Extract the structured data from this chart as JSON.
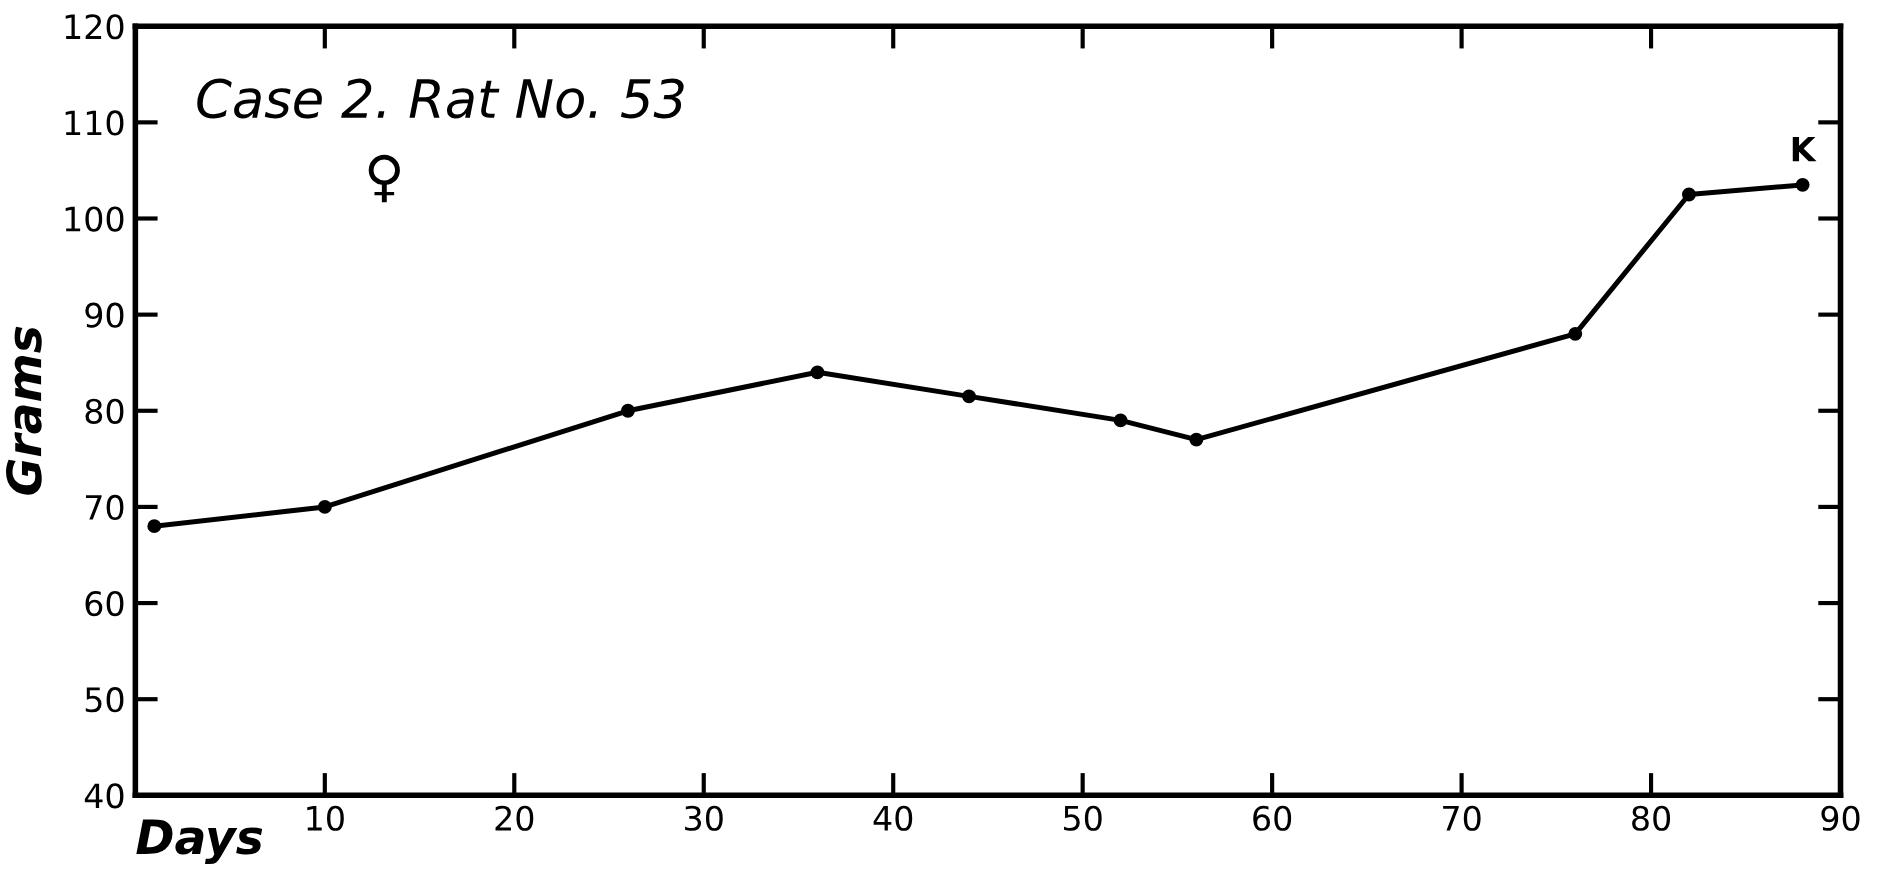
{
  "chart_data": {
    "type": "line",
    "title": "Case 2. Rat No. 53",
    "xlabel": "Days",
    "ylabel": "Grams",
    "x": [
      1,
      10,
      26,
      36,
      44,
      52,
      56,
      76,
      82,
      88
    ],
    "series": [
      {
        "color": "#000000",
        "values": [
          68,
          70,
          80,
          84,
          81.5,
          79,
          77,
          88,
          102.5,
          103.5
        ]
      }
    ],
    "annotations": [
      "♀",
      {
        "text": "K",
        "x": 88,
        "y": 103.5
      }
    ],
    "xlim": [
      0,
      90
    ],
    "xticks": [
      10,
      20,
      30,
      40,
      50,
      60,
      70,
      80,
      90
    ],
    "ylim": [
      40,
      120
    ],
    "yticks": [
      40,
      50,
      60,
      70,
      80,
      90,
      100,
      110,
      120
    ],
    "grid": false,
    "legend": false,
    "marker": "circle",
    "line_style": "solid"
  }
}
